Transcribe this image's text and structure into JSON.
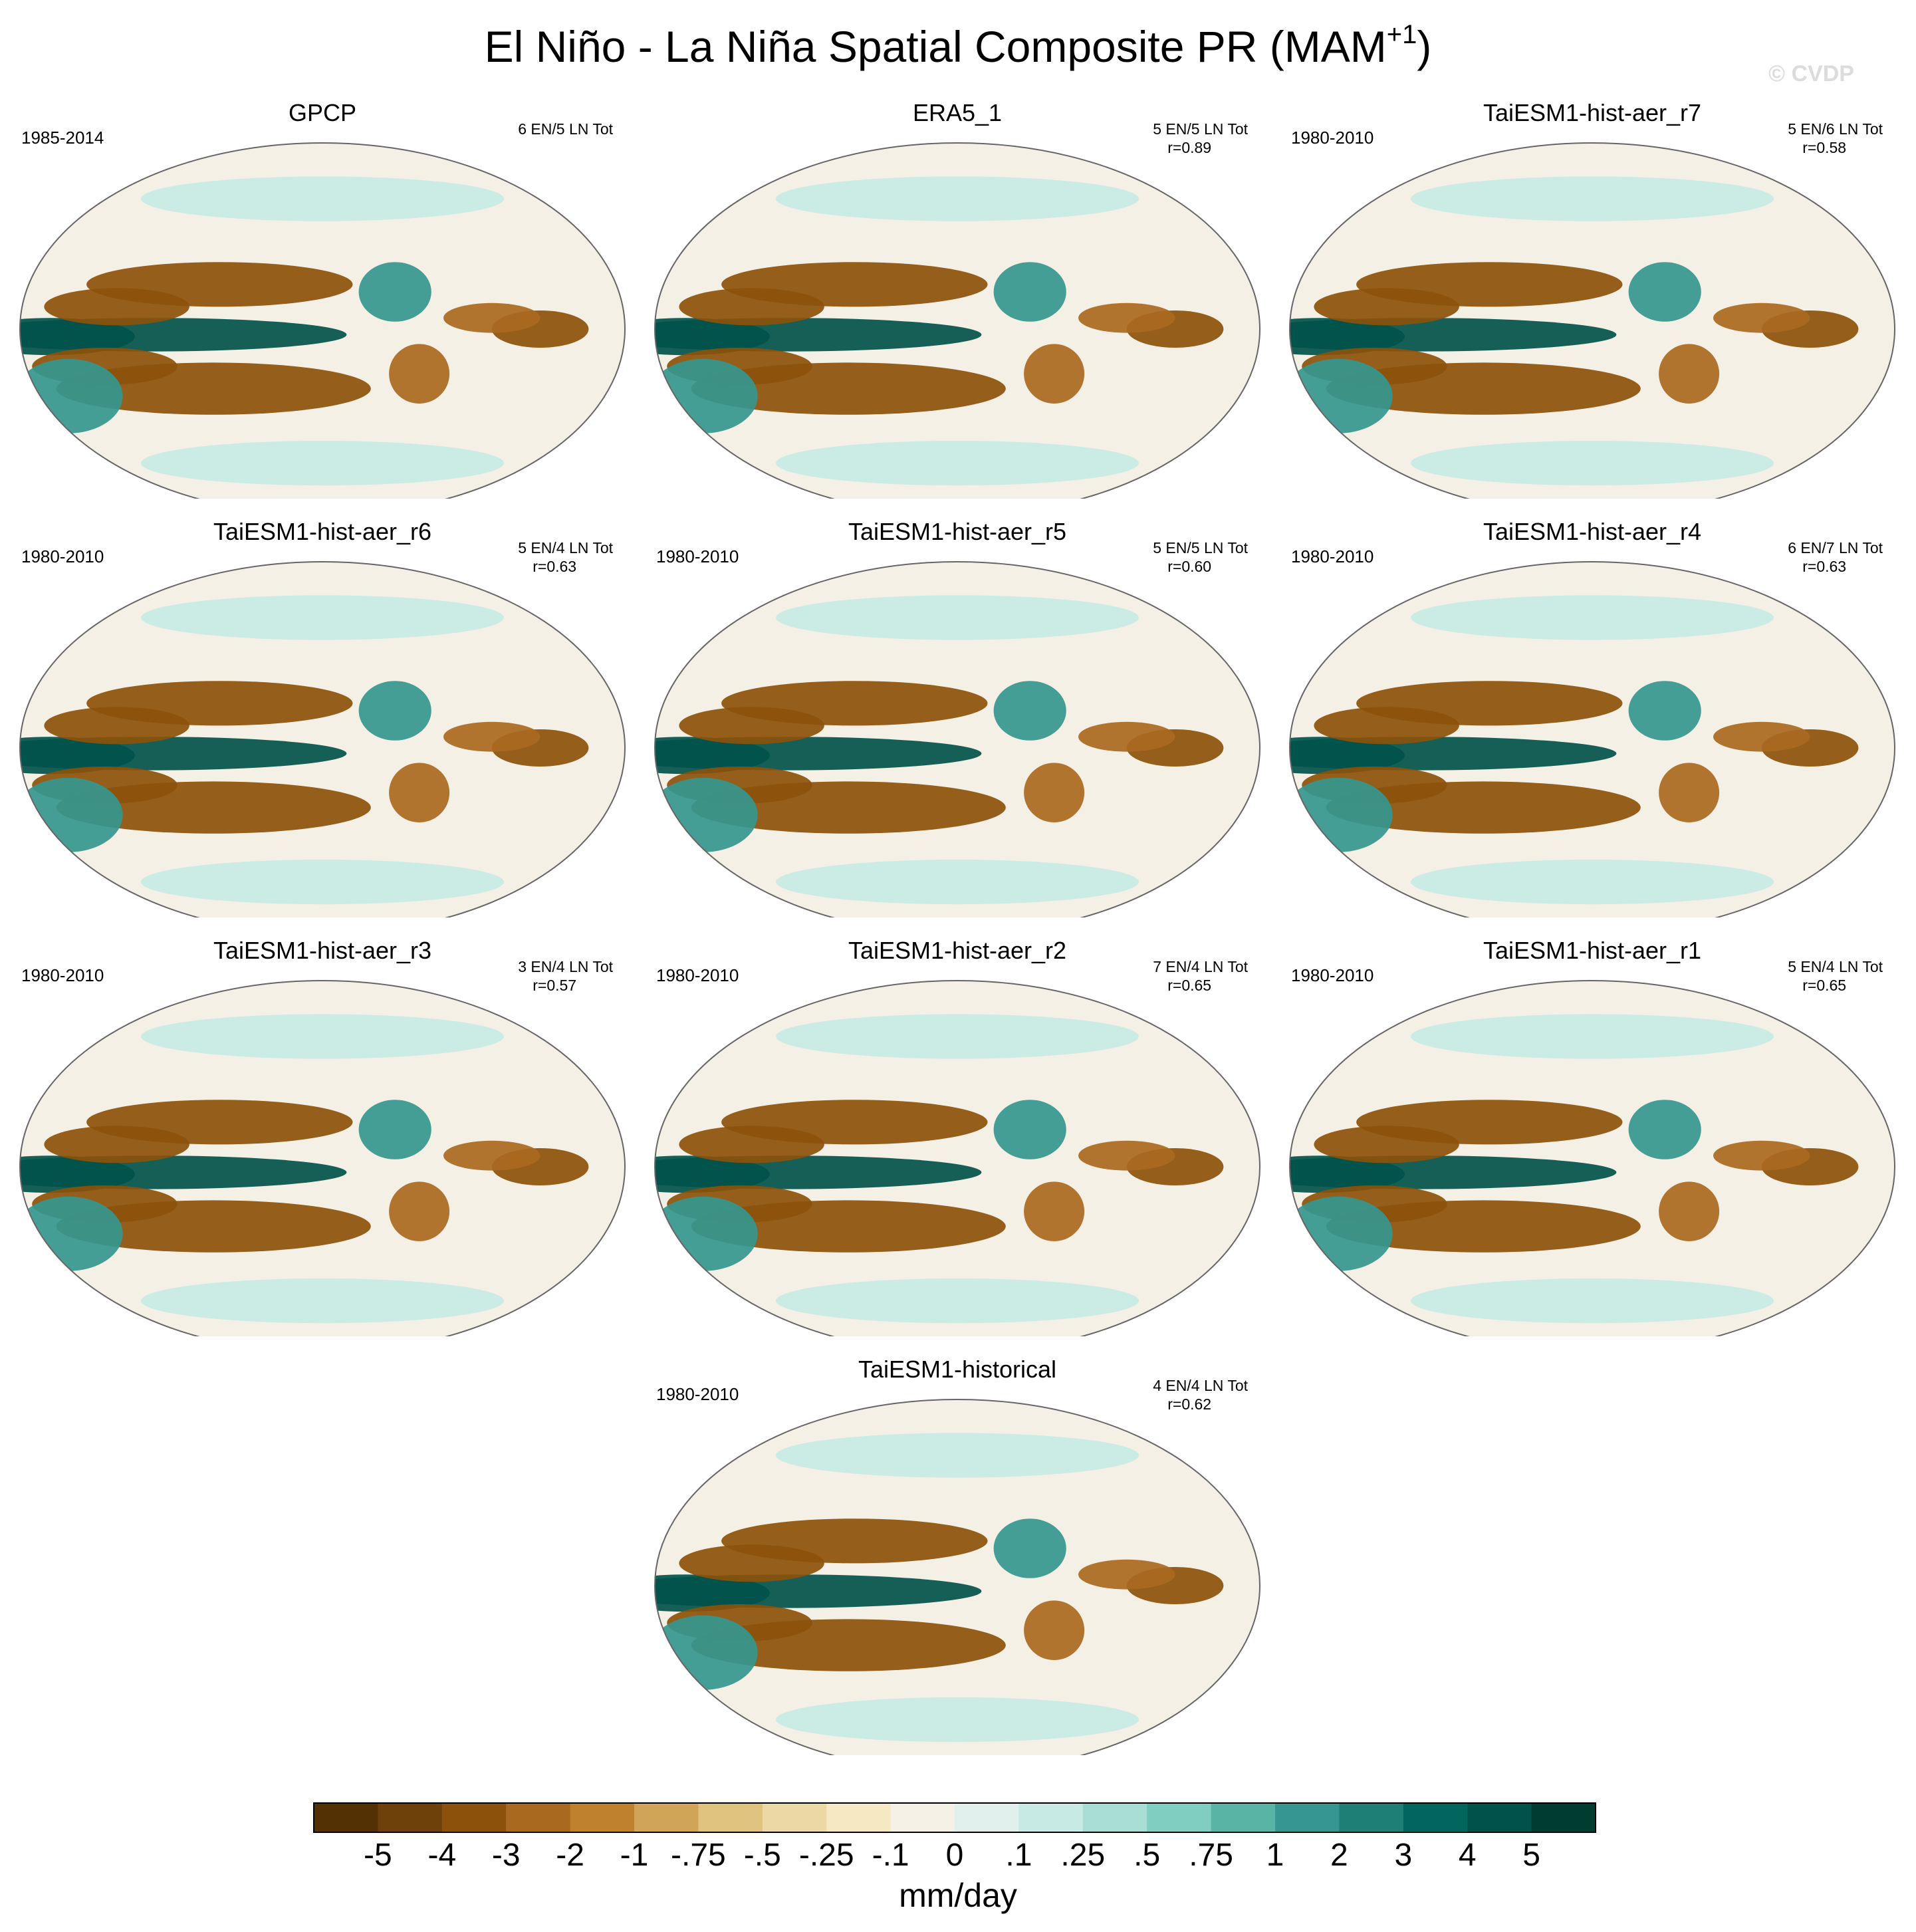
{
  "chart_data": {
    "type": "heatmap",
    "projection": "robinson",
    "title": "El Niño - La Niña Spatial Composite PR (MAM",
    "title_superscript": "+1",
    "title_close": ")",
    "watermark": "© CVDP",
    "colorbar": {
      "label": "mm/day",
      "tick_labels": [
        "-5",
        "-4",
        "-3",
        "-2",
        "-1",
        "-.75",
        "-.5",
        "-.25",
        "-.1",
        "0",
        ".1",
        ".25",
        ".5",
        ".75",
        "1",
        "2",
        "3",
        "4",
        "5"
      ],
      "colors": [
        "#543005",
        "#6e400a",
        "#8c510a",
        "#a9691f",
        "#bf812d",
        "#d1a557",
        "#dfc27d",
        "#ecd8a5",
        "#f6e8c3",
        "#f5f0e6",
        "#e2f0ed",
        "#c7eae5",
        "#a8ddd4",
        "#80cdc1",
        "#5ab4a6",
        "#35978f",
        "#1d7f76",
        "#01665e",
        "#01524a",
        "#003c30"
      ]
    },
    "panels": [
      {
        "name": "GPCP",
        "period": "1985-2014",
        "counts": "6 EN/5 LN Tot",
        "r": ""
      },
      {
        "name": "ERA5_1",
        "period": "",
        "counts": "5 EN/5 LN Tot",
        "r": "r=0.89"
      },
      {
        "name": "TaiESM1-hist-aer_r7",
        "period": "1980-2010",
        "counts": "5 EN/6 LN Tot",
        "r": "r=0.58"
      },
      {
        "name": "TaiESM1-hist-aer_r6",
        "period": "1980-2010",
        "counts": "5 EN/4 LN Tot",
        "r": "r=0.63"
      },
      {
        "name": "TaiESM1-hist-aer_r5",
        "period": "1980-2010",
        "counts": "5 EN/5 LN Tot",
        "r": "r=0.60"
      },
      {
        "name": "TaiESM1-hist-aer_r4",
        "period": "1980-2010",
        "counts": "6 EN/7 LN Tot",
        "r": "r=0.63"
      },
      {
        "name": "TaiESM1-hist-aer_r3",
        "period": "1980-2010",
        "counts": "3 EN/4 LN Tot",
        "r": "r=0.57"
      },
      {
        "name": "TaiESM1-hist-aer_r2",
        "period": "1980-2010",
        "counts": "7 EN/4 LN Tot",
        "r": "r=0.65"
      },
      {
        "name": "TaiESM1-hist-aer_r1",
        "period": "1980-2010",
        "counts": "5 EN/4 LN Tot",
        "r": "r=0.65"
      },
      {
        "name": "TaiESM1-historical",
        "period": "1980-2010",
        "counts": "4 EN/4 LN Tot",
        "r": "r=0.62"
      }
    ],
    "pattern_features": [
      {
        "feature": "equatorial-pacific-wet-tongue",
        "value": 4.5
      },
      {
        "feature": "north-subtropical-pacific-dry",
        "value": -3
      },
      {
        "feature": "south-subtropical-pacific-dry",
        "value": -3
      },
      {
        "feature": "maritime-continent-dry",
        "value": -3.5
      },
      {
        "feature": "indian-ocean-wet",
        "value": 2
      },
      {
        "feature": "tropical-atlantic-dry",
        "value": -2
      },
      {
        "feature": "high-latitude-weak",
        "value": 0.25
      }
    ]
  }
}
